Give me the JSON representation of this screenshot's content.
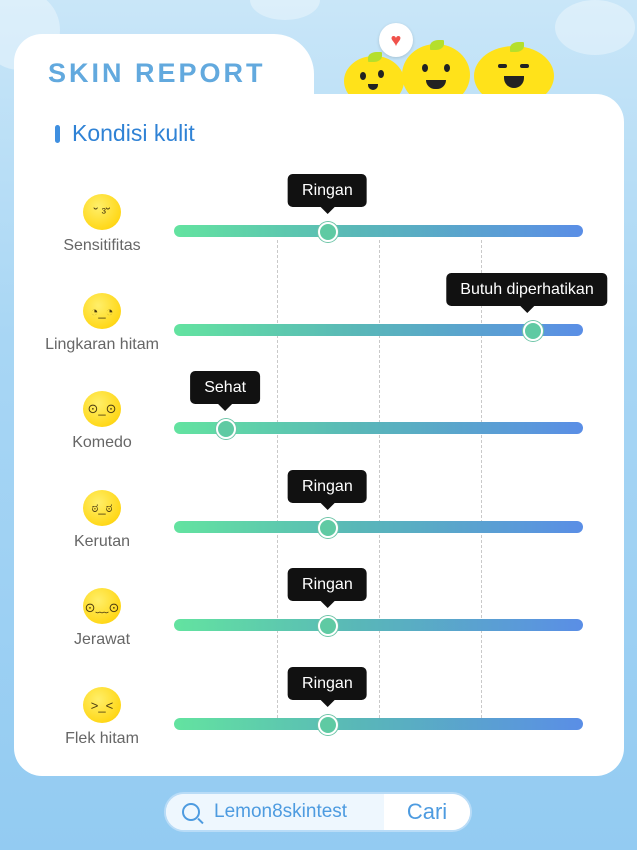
{
  "header": {
    "title": "SKIN REPORT"
  },
  "section": {
    "title": "Kondisi kulit"
  },
  "rows": [
    {
      "label": "Sensitifitas",
      "level": 0.375,
      "tooltip": "Ringan",
      "icon": "blushing-lemon-icon"
    },
    {
      "label": "Lingkaran hitam",
      "level": 0.875,
      "tooltip": "Butuh diperhatikan",
      "icon": "tired-lemon-icon"
    },
    {
      "label": "Komedo",
      "level": 0.125,
      "tooltip": "Sehat",
      "icon": "surprised-lemon-icon"
    },
    {
      "label": "Kerutan",
      "level": 0.375,
      "tooltip": "Ringan",
      "icon": "frowning-lemon-icon"
    },
    {
      "label": "Jerawat",
      "level": 0.375,
      "tooltip": "Ringan",
      "icon": "worried-lemon-icon"
    },
    {
      "label": "Flek hitam",
      "level": 0.375,
      "tooltip": "Ringan",
      "icon": "squinting-lemon-icon"
    }
  ],
  "search": {
    "query": "Lemon8skintest",
    "button_label": "Cari"
  },
  "colors": {
    "accent": "#2f82d5",
    "tooltip_bg": "#111111",
    "track_start": "#63e3a0",
    "track_end": "#5a8ee6"
  }
}
